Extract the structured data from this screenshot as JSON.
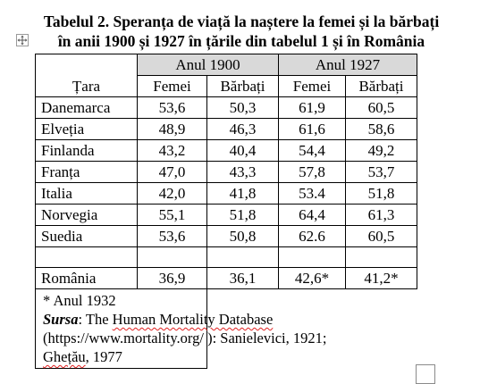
{
  "title": {
    "line1": "Tabelul 2. Speranța de viață la naștere la femei și la bărbați",
    "line2": "în anii 1900 și 1927 în țările din tabelul 1 și în România"
  },
  "table": {
    "col_country": "Țara",
    "year_groups": [
      "Anul 1900",
      "Anul 1927"
    ],
    "sub_headers": [
      "Femei",
      "Bărbați",
      "Femei",
      "Bărbați"
    ],
    "rows": [
      {
        "country": "Danemarca",
        "values": [
          "53,6",
          "50,3",
          "61,9",
          "60,5"
        ]
      },
      {
        "country": "Elveția",
        "values": [
          "48,9",
          "46,3",
          "61,6",
          "58,6"
        ]
      },
      {
        "country": "Finlanda",
        "values": [
          "43,2",
          "40,4",
          "54,4",
          "49,2"
        ]
      },
      {
        "country": "Franța",
        "values": [
          "47,0",
          "43,3",
          "57,8",
          "53,7"
        ]
      },
      {
        "country": "Italia",
        "values": [
          "42,0",
          "41,8",
          "53.4",
          "51,8"
        ]
      },
      {
        "country": "Norvegia",
        "values": [
          "55,1",
          "51,8",
          "64,4",
          "61,3"
        ]
      },
      {
        "country": "Suedia",
        "values": [
          "53,6",
          "50,8",
          "62.6",
          "60,5"
        ]
      }
    ],
    "romania": {
      "country": "România",
      "values": [
        "36,9",
        "36,1",
        "42,6*",
        "41,2*"
      ]
    }
  },
  "notes": {
    "footnote": "* Anul  1932",
    "source_label": "Sursa",
    "source_sep": ": The ",
    "source_db": "Human Mortality Database",
    "source_line2": "(https://www.mortality.org/ ): Sanielevici, 1921;",
    "source_author": "Ghețău",
    "source_year": ", 1977"
  },
  "colors": {
    "header_fill": "#d9d9d9",
    "spellcheck": "#e02020"
  },
  "icons": {
    "table_move": "four-arrow-move-icon",
    "table_resize": "resize-handle-icon"
  }
}
